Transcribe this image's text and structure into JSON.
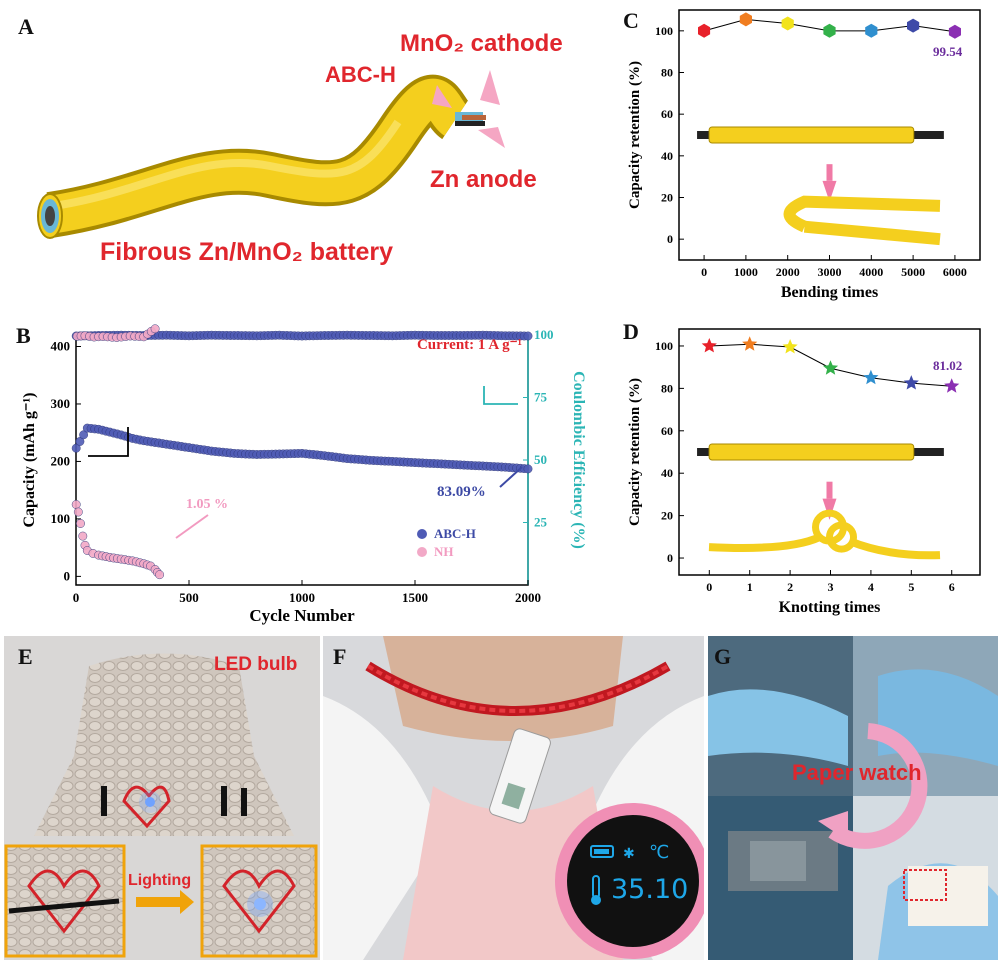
{
  "panels": {
    "A": {
      "tag": "A",
      "labels": {
        "cathode": "MnO₂ cathode",
        "separator": "ABC-H",
        "anode": "Zn anode",
        "device": "Fibrous Zn/MnO₂ battery"
      }
    },
    "E": {
      "tag": "E",
      "title": "LED bulb",
      "arrow_label": "Lighting"
    },
    "F": {
      "tag": "F",
      "thermo_readout": "35.10",
      "unit": "℃"
    },
    "G": {
      "tag": "G",
      "title": "Paper watch"
    }
  },
  "chart_data": [
    {
      "panel": "B",
      "type": "scatter",
      "xlabel": "Cycle Number",
      "ylabel": "Capacity (mAh g⁻¹)",
      "y2label": "Coulombic Efficiency (%)",
      "xlim": [
        0,
        2000
      ],
      "ylim": [
        -15,
        420
      ],
      "y2lim": [
        0,
        100
      ],
      "x_ticks": [
        0,
        500,
        1000,
        1500,
        2000
      ],
      "y_ticks": [
        0,
        100,
        200,
        300,
        400
      ],
      "y2_ticks": [
        25,
        50,
        75,
        100
      ],
      "annotations": {
        "current": "Current: 1 A g⁻¹",
        "abc_h_retention": "83.09%",
        "nh_retention": "1.05 %"
      },
      "legend_position": "bottom-right",
      "series": [
        {
          "name": "ABC-H",
          "kind": "capacity",
          "color": "#4f5bb5",
          "x": [
            1,
            50,
            100,
            150,
            200,
            250,
            300,
            350,
            400,
            500,
            600,
            700,
            800,
            900,
            1000,
            1100,
            1200,
            1300,
            1400,
            1500,
            1600,
            1700,
            1800,
            1900,
            2000
          ],
          "y": [
            223,
            258,
            256,
            251,
            246,
            240,
            236,
            233,
            230,
            224,
            218,
            214,
            212,
            213,
            214,
            210,
            205,
            202,
            200,
            198,
            196,
            194,
            192,
            190,
            187
          ]
        },
        {
          "name": "NH",
          "kind": "capacity",
          "color": "#f2a9c7",
          "x": [
            1,
            10,
            20,
            30,
            40,
            50,
            75,
            100,
            150,
            200,
            250,
            300,
            330,
            350,
            360,
            370
          ],
          "y": [
            125,
            112,
            92,
            70,
            54,
            45,
            40,
            37,
            33,
            30,
            27,
            22,
            18,
            12,
            7,
            3
          ]
        },
        {
          "name": "ABC-H",
          "kind": "efficiency",
          "color": "#4f5bb5",
          "x": [
            1,
            100,
            200,
            300,
            400,
            500,
            600,
            700,
            800,
            900,
            1000,
            1100,
            1200,
            1300,
            1400,
            1500,
            1600,
            1700,
            1800,
            1900,
            2000
          ],
          "y": [
            99.6,
            99.8,
            99.9,
            99.8,
            99.9,
            99.7,
            99.9,
            99.8,
            99.7,
            99.9,
            99.6,
            99.8,
            99.9,
            99.8,
            99.7,
            99.9,
            99.8,
            99.8,
            99.9,
            99.7,
            99.6
          ]
        },
        {
          "name": "NH",
          "kind": "efficiency",
          "color": "#f2a9c7",
          "x": [
            5,
            40,
            80,
            120,
            180,
            240,
            300,
            350
          ],
          "y": [
            99.5,
            99.7,
            99.2,
            99.4,
            99.0,
            99.6,
            99.3,
            102.5
          ]
        }
      ]
    },
    {
      "panel": "C",
      "type": "line",
      "xlabel": "Bending times",
      "ylabel": "Capacity retention (%)",
      "xlim": [
        -600,
        6600
      ],
      "ylim": [
        -10,
        110
      ],
      "x_ticks": [
        0,
        1000,
        2000,
        3000,
        4000,
        5000,
        6000
      ],
      "y_ticks": [
        0,
        20,
        40,
        60,
        80,
        100
      ],
      "x": [
        0,
        1000,
        2000,
        3000,
        4000,
        5000,
        6000
      ],
      "y": [
        100,
        105.5,
        103.5,
        100,
        100,
        102.5,
        99.54
      ],
      "marker_colors": [
        "#e8212a",
        "#f07d20",
        "#f2e31b",
        "#33b14a",
        "#2f8fcf",
        "#3e4aa8",
        "#8b2fb3"
      ],
      "annotation": "99.54"
    },
    {
      "panel": "D",
      "type": "line",
      "xlabel": "Knotting times",
      "ylabel": "Capacity retention (%)",
      "xlim": [
        -0.75,
        6.7
      ],
      "ylim": [
        -8,
        108
      ],
      "x_ticks": [
        0,
        1,
        2,
        3,
        4,
        5,
        6
      ],
      "y_ticks": [
        0,
        20,
        40,
        60,
        80,
        100
      ],
      "x": [
        0,
        1,
        2,
        3,
        4,
        5,
        6
      ],
      "y": [
        100,
        100.8,
        99.5,
        89.5,
        85,
        82.5,
        81.02
      ],
      "marker_colors": [
        "#e8212a",
        "#f07d20",
        "#f2e31b",
        "#33b14a",
        "#2f8fcf",
        "#3e4aa8",
        "#8b2fb3"
      ],
      "annotation": "81.02"
    }
  ]
}
